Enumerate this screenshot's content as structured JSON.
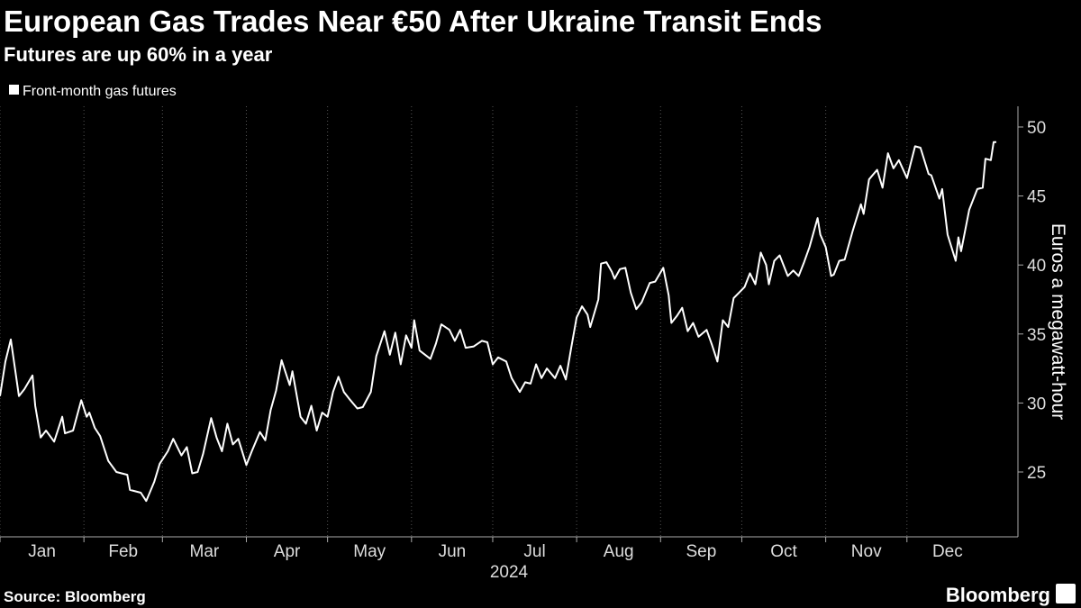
{
  "chart_data": {
    "type": "line",
    "title": "European Gas Trades Near €50 After Ukraine Transit Ends",
    "subtitle": "Futures are up 60% in a year",
    "ylabel": "Euros a megawatt-hour",
    "xlabel": "2024",
    "source": "Source: Bloomberg",
    "brand": "Bloomberg",
    "xlim": [
      1,
      377
    ],
    "ylim": [
      20.3,
      51.5
    ],
    "yticks": [
      25,
      30,
      35,
      40,
      45,
      50
    ],
    "xticks": [
      {
        "value": 1,
        "label": "Jan"
      },
      {
        "value": 32,
        "label": "Feb"
      },
      {
        "value": 61,
        "label": "Mar"
      },
      {
        "value": 92,
        "label": "Apr"
      },
      {
        "value": 122,
        "label": "May"
      },
      {
        "value": 153,
        "label": "Jun"
      },
      {
        "value": 183,
        "label": "Jul"
      },
      {
        "value": 214,
        "label": "Aug"
      },
      {
        "value": 245,
        "label": "Sep"
      },
      {
        "value": 275,
        "label": "Oct"
      },
      {
        "value": 306,
        "label": "Nov"
      },
      {
        "value": 336,
        "label": "Dec"
      }
    ],
    "grid": true,
    "series": [
      {
        "name": "Front-month gas futures",
        "color": "#ffffff",
        "x": [
          1,
          3,
          5,
          8,
          10,
          13,
          14,
          16,
          18,
          21,
          24,
          25,
          28,
          31,
          33,
          34,
          36,
          38,
          41,
          44,
          48,
          49,
          53,
          55,
          58,
          60,
          63,
          65,
          68,
          70,
          72,
          74,
          76,
          79,
          81,
          83,
          85,
          87,
          89,
          92,
          94,
          97,
          99,
          101,
          103,
          105,
          108,
          109,
          112,
          114,
          116,
          118,
          120,
          122,
          124,
          126,
          128,
          130,
          133,
          135,
          138,
          140,
          143,
          145,
          147,
          149,
          151,
          153,
          154,
          156,
          158,
          160,
          162,
          164,
          167,
          169,
          171,
          173,
          176,
          179,
          181,
          183,
          185,
          188,
          190,
          193,
          195,
          197,
          199,
          201,
          203,
          206,
          208,
          210,
          212,
          214,
          216,
          218,
          219,
          222,
          223,
          225,
          227,
          228,
          230,
          232,
          234,
          236,
          238,
          241,
          243,
          246,
          248,
          249,
          251,
          253,
          255,
          257,
          259,
          262,
          264,
          266,
          268,
          270,
          272,
          274,
          276,
          278,
          280,
          282,
          284,
          285,
          287,
          289,
          292,
          294,
          296,
          298,
          300,
          303,
          304,
          306,
          308,
          309,
          311,
          313,
          316,
          319,
          320,
          322,
          325,
          327,
          329,
          331,
          333,
          336,
          339,
          341,
          344,
          345,
          348,
          349,
          351,
          354,
          355,
          356,
          359,
          362,
          364,
          365,
          367,
          368,
          369
        ],
        "values": [
          30.5,
          33,
          34.6,
          30.5,
          31,
          32,
          29.8,
          27.5,
          28,
          27.2,
          29,
          27.8,
          28,
          30.2,
          29,
          29.3,
          28.2,
          27.6,
          25.8,
          25,
          24.8,
          23.7,
          23.5,
          22.9,
          24.3,
          25.6,
          26.5,
          27.4,
          26.2,
          26.8,
          24.9,
          25,
          26.3,
          28.9,
          27.5,
          26.5,
          28.5,
          27,
          27.4,
          25.5,
          26.5,
          27.9,
          27.3,
          29.5,
          30.9,
          33.1,
          31.3,
          32.3,
          29,
          28.5,
          29.8,
          28,
          29.3,
          29,
          30.8,
          31.9,
          30.8,
          30.3,
          29.6,
          29.7,
          30.8,
          33.4,
          35.2,
          33.5,
          35.1,
          32.8,
          34.9,
          34,
          36,
          33.8,
          33.5,
          33.2,
          34.3,
          35.7,
          35.3,
          34.5,
          35.3,
          34,
          34.1,
          34.5,
          34.4,
          32.8,
          33.3,
          33,
          31.8,
          30.8,
          31.5,
          31.4,
          32.8,
          31.8,
          32.5,
          31.8,
          32.7,
          31.7,
          34,
          36.2,
          37,
          36.4,
          35.5,
          37.5,
          40.1,
          40.2,
          39.5,
          39,
          39.7,
          39.8,
          38,
          36.8,
          37.3,
          38.7,
          38.8,
          39.8,
          37.8,
          35.8,
          36.3,
          36.9,
          35.2,
          35.8,
          34.8,
          35.3,
          34.2,
          33,
          36,
          35.5,
          37.6,
          38,
          38.4,
          39.4,
          38.6,
          40.9,
          40,
          38.6,
          40.3,
          40.7,
          39.2,
          39.6,
          39.2,
          40.2,
          41.3,
          43.4,
          42.2,
          41.3,
          39.2,
          39.3,
          40.3,
          40.4,
          42.5,
          44.4,
          43.7,
          46.2,
          46.9,
          45.6,
          48.1,
          47,
          47.6,
          46.3,
          48.6,
          48.5,
          46.6,
          46.5,
          44.8,
          45.5,
          42.2,
          40.3,
          42,
          41,
          44,
          45.5,
          45.6,
          47.7,
          47.6,
          48.9,
          48.9
        ]
      }
    ]
  }
}
